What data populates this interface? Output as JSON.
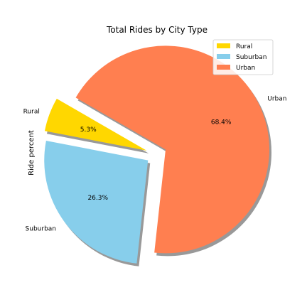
{
  "chart_data": {
    "type": "pie",
    "title": "Total Rides by City Type",
    "ylabel": "Ride percent",
    "slices": [
      {
        "label": "Rural",
        "value": 5.3,
        "pct_label": "5.3%",
        "color": "#FFD700",
        "explode": 0.1
      },
      {
        "label": "Suburban",
        "value": 26.3,
        "pct_label": "26.3%",
        "color": "#87CEEB",
        "explode": 0.1
      },
      {
        "label": "Urban",
        "value": 68.4,
        "pct_label": "68.4%",
        "color": "#FF7F50",
        "explode": 0.1
      }
    ],
    "start_angle_deg": 150,
    "shadow": true,
    "legend": {
      "position": "top-right",
      "entries": [
        "Rural",
        "Suburban",
        "Urban"
      ]
    }
  }
}
